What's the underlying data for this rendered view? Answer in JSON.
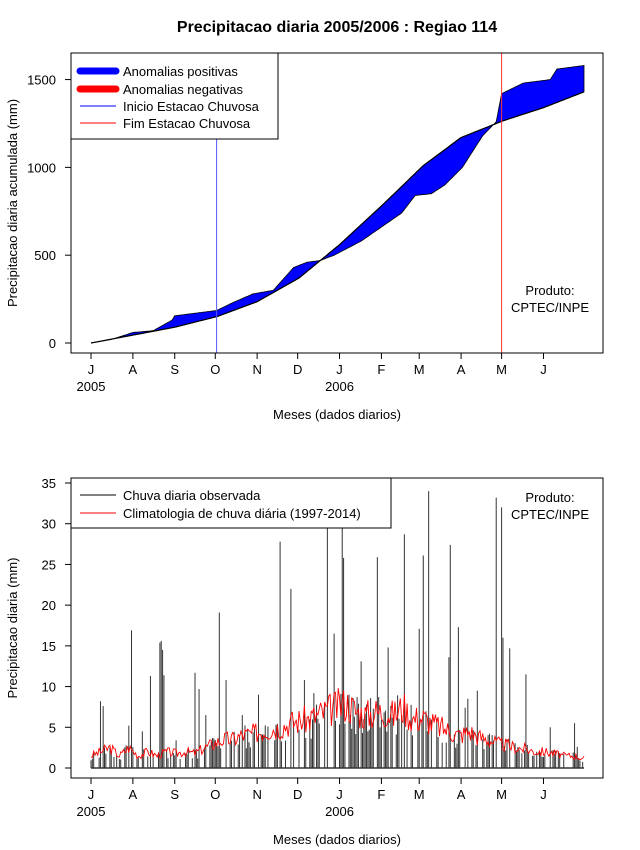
{
  "chart_data": [
    {
      "type": "area",
      "title": "Precipitacao diaria 2005/2006 : Regiao 114",
      "xlabel": "Meses (dados diarios)",
      "ylabel": "Precipitacao diaria acumulada (mm)",
      "ylim": [
        0,
        1600
      ],
      "yticks": [
        0,
        500,
        1000,
        1500
      ],
      "month_ticks": [
        "J",
        "A",
        "S",
        "O",
        "N",
        "D",
        "J",
        "F",
        "M",
        "A",
        "M",
        "J"
      ],
      "year_labels": [
        "2005",
        "2006"
      ],
      "legend": {
        "position": "top-left",
        "entries": [
          {
            "label": "Anomalias positivas",
            "color": "#0000ff"
          },
          {
            "label": "Anomalias negativas",
            "color": "#ff0000"
          },
          {
            "label": "Inicio Estacao Chuvosa",
            "color": "#0000ff"
          },
          {
            "label": "Fim Estacao Chuvosa",
            "color": "#ff0000"
          }
        ]
      },
      "rainy_season": {
        "start_day": 93,
        "end_day": 304
      },
      "observed_cumulative": {
        "days": [
          0,
          15,
          31,
          46,
          60,
          62,
          93,
          105,
          120,
          135,
          150,
          160,
          170,
          180,
          200,
          215,
          230,
          240,
          252,
          262,
          275,
          290,
          300,
          304,
          320,
          340,
          345,
          365
        ],
        "values": [
          0,
          20,
          60,
          70,
          130,
          155,
          185,
          230,
          280,
          300,
          430,
          460,
          470,
          500,
          580,
          660,
          740,
          840,
          850,
          900,
          1000,
          1180,
          1260,
          1420,
          1480,
          1500,
          1560,
          1580
        ]
      },
      "climatology_cumulative": {
        "days": [
          0,
          31,
          62,
          93,
          123,
          154,
          184,
          215,
          246,
          274,
          305,
          335,
          365
        ],
        "values": [
          0,
          45,
          90,
          150,
          235,
          370,
          560,
          780,
          1010,
          1170,
          1265,
          1340,
          1430
        ]
      },
      "annotation": "Produto:\nCPTEC/INPE"
    },
    {
      "type": "bar",
      "title": "",
      "xlabel": "Meses (dados diarios)",
      "ylabel": "Precipitacao diaria (mm)",
      "ylim": [
        0,
        35
      ],
      "yticks": [
        0,
        5,
        10,
        15,
        20,
        25,
        30,
        35
      ],
      "month_ticks": [
        "J",
        "A",
        "S",
        "O",
        "N",
        "D",
        "J",
        "F",
        "M",
        "A",
        "M",
        "J"
      ],
      "year_labels": [
        "2005",
        "2006"
      ],
      "legend": {
        "position": "top-left",
        "entries": [
          {
            "label": "Chuva diaria observada",
            "color": "#000000"
          },
          {
            "label": "Climatologia de chuva diária (1997-2014)",
            "color": "#ff0000"
          }
        ]
      },
      "observed_daily_peaks": {
        "days": [
          2,
          7,
          9,
          28,
          30,
          38,
          44,
          51,
          52,
          53,
          54,
          63,
          77,
          80,
          85,
          95,
          100,
          110,
          112,
          124,
          140,
          148,
          158,
          165,
          175,
          180,
          186,
          187,
          200,
          205,
          212,
          220,
          232,
          243,
          246,
          250,
          265,
          266,
          272,
          277,
          279,
          286,
          300,
          304,
          305,
          310,
          322,
          330,
          340,
          346,
          358,
          360
        ],
        "values": [
          2.0,
          8.2,
          7.6,
          5.2,
          16.9,
          4.5,
          11.3,
          15.4,
          15.6,
          14.5,
          11.4,
          3.4,
          11.7,
          9.7,
          6.5,
          19.1,
          10.8,
          3.8,
          6.5,
          9.0,
          27.8,
          22.0,
          10.8,
          9.2,
          30.0,
          16.5,
          29.5,
          25.8,
          13.1,
          4.5,
          25.9,
          14.8,
          28.7,
          17.1,
          26.1,
          34.0,
          13.6,
          27.4,
          17.3,
          7.4,
          8.5,
          9.5,
          33.2,
          32.0,
          16.0,
          14.7,
          11.5,
          2.0,
          5.0,
          2.0,
          5.5,
          2.6
        ]
      },
      "climatology_weekly": {
        "days": [
          0,
          7,
          14,
          21,
          28,
          35,
          42,
          49,
          56,
          63,
          70,
          77,
          84,
          91,
          98,
          105,
          112,
          119,
          126,
          133,
          140,
          147,
          154,
          161,
          168,
          175,
          182,
          189,
          196,
          203,
          210,
          217,
          224,
          231,
          238,
          245,
          252,
          259,
          266,
          273,
          280,
          287,
          294,
          301,
          308,
          315,
          322,
          329,
          336,
          343,
          350,
          357,
          365
        ],
        "values": [
          1.5,
          2.0,
          2.5,
          1.5,
          2.5,
          1.5,
          2.0,
          1.5,
          2.0,
          1.8,
          2.0,
          1.8,
          2.5,
          3.0,
          3.5,
          3.5,
          4.0,
          4.2,
          4.5,
          4.8,
          5.0,
          5.5,
          5.8,
          6.0,
          6.5,
          7.0,
          7.5,
          8.0,
          7.0,
          6.5,
          6.8,
          7.0,
          6.5,
          7.5,
          6.0,
          6.2,
          5.5,
          5.0,
          4.5,
          4.0,
          4.5,
          3.8,
          3.5,
          3.0,
          2.8,
          2.5,
          2.3,
          2.0,
          2.0,
          1.8,
          1.5,
          1.5,
          1.2
        ]
      },
      "annotation": "Produto:\nCPTEC/INPE"
    }
  ]
}
